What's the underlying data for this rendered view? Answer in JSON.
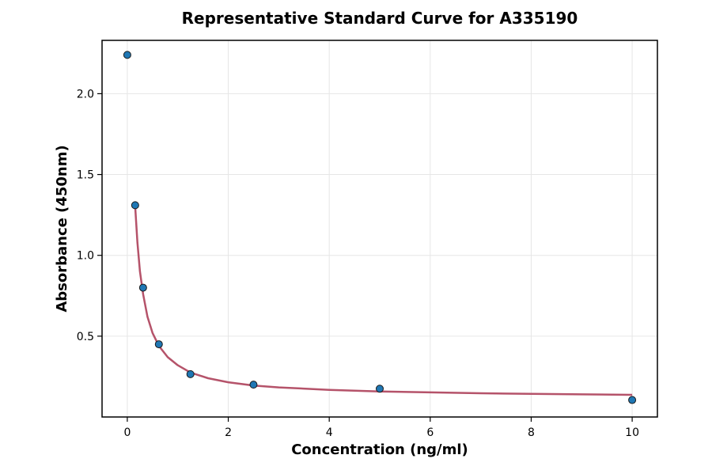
{
  "chart_data": {
    "type": "scatter",
    "title": "Representative Standard Curve for A335190",
    "xlabel": "Concentration (ng/ml)",
    "ylabel": "Absorbance (450nm)",
    "xlim": [
      -0.5,
      10.5
    ],
    "ylim": [
      0.0,
      2.33
    ],
    "xticks": [
      0,
      2,
      4,
      6,
      8,
      10
    ],
    "xtick_labels": [
      "0",
      "2",
      "4",
      "6",
      "8",
      "10"
    ],
    "yticks": [
      0.5,
      1.0,
      1.5,
      2.0
    ],
    "ytick_labels": [
      "0.5",
      "1.0",
      "1.5",
      "2.0"
    ],
    "grid": true,
    "series": [
      {
        "kind": "points",
        "color": "#1f77b4",
        "edge_color": "#1a1a1a",
        "x": [
          0,
          0.156,
          0.3125,
          0.625,
          1.25,
          2.5,
          5,
          10
        ],
        "y": [
          2.24,
          1.31,
          0.8,
          0.45,
          0.265,
          0.2,
          0.175,
          0.105
        ]
      },
      {
        "kind": "fit-curve",
        "color": "#b5536a",
        "x": [
          0.156,
          0.2,
          0.25,
          0.3125,
          0.4,
          0.5,
          0.625,
          0.8,
          1.0,
          1.25,
          1.6,
          2.0,
          2.5,
          3.0,
          4.0,
          5.0,
          6.0,
          7.0,
          8.0,
          9.0,
          10.0
        ],
        "y": [
          1.3,
          1.08,
          0.9,
          0.76,
          0.62,
          0.52,
          0.44,
          0.37,
          0.32,
          0.275,
          0.24,
          0.215,
          0.195,
          0.183,
          0.168,
          0.158,
          0.152,
          0.147,
          0.143,
          0.14,
          0.137
        ]
      }
    ]
  }
}
